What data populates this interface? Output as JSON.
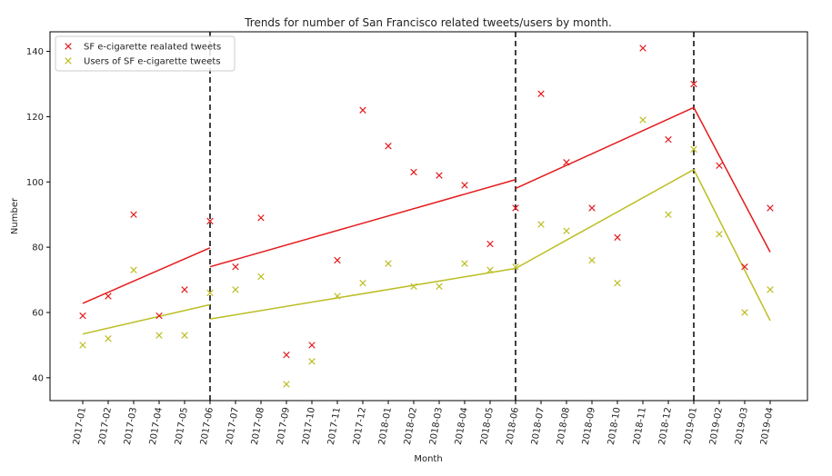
{
  "chart_data": {
    "type": "scatter",
    "title": "Trends for number of San Francisco related tweets/users by month.",
    "xlabel": "Month",
    "ylabel": "Number",
    "ylim": [
      33,
      146
    ],
    "yticks": [
      40,
      60,
      80,
      100,
      120,
      140
    ],
    "categories": [
      "2017-01",
      "2017-02",
      "2017-03",
      "2017-04",
      "2017-05",
      "2017-06",
      "2017-07",
      "2017-08",
      "2017-09",
      "2017-10",
      "2017-11",
      "2017-12",
      "2018-01",
      "2018-02",
      "2018-03",
      "2018-04",
      "2018-05",
      "2018-06",
      "2018-07",
      "2018-08",
      "2018-09",
      "2018-10",
      "2018-11",
      "2018-12",
      "2019-01",
      "2019-02",
      "2019-03",
      "2019-04"
    ],
    "legend_position": "top-left",
    "grid": false,
    "series": [
      {
        "name": "SF e-cigarette realated tweets",
        "color": "#e41a1c",
        "marker": "x",
        "values": [
          59,
          65,
          90,
          59,
          67,
          88,
          74,
          89,
          47,
          50,
          76,
          122,
          111,
          103,
          102,
          99,
          81,
          92,
          127,
          106,
          92,
          83,
          141,
          113,
          130,
          105,
          74,
          92
        ],
        "trend_segments": [
          {
            "from": "2017-01",
            "to": "2017-06",
            "y_start": 62.8,
            "y_end": 79.8
          },
          {
            "from": "2017-06",
            "to": "2018-06",
            "y_start": 74.0,
            "y_end": 100.7
          },
          {
            "from": "2018-06",
            "to": "2019-01",
            "y_start": 98.0,
            "y_end": 122.8
          },
          {
            "from": "2019-01",
            "to": "2019-04",
            "y_start": 122.8,
            "y_end": 78.5
          }
        ]
      },
      {
        "name": "Users of SF e-cigarette tweets",
        "color": "#bcbd22",
        "marker": "x",
        "values": [
          50,
          52,
          73,
          53,
          53,
          66,
          67,
          71,
          38,
          45,
          65,
          69,
          75,
          68,
          68,
          75,
          73,
          74,
          87,
          85,
          76,
          69,
          119,
          90,
          110,
          84,
          60,
          67
        ],
        "trend_segments": [
          {
            "from": "2017-01",
            "to": "2017-06",
            "y_start": 53.4,
            "y_end": 62.4
          },
          {
            "from": "2017-06",
            "to": "2018-06",
            "y_start": 58.0,
            "y_end": 73.5
          },
          {
            "from": "2018-06",
            "to": "2019-01",
            "y_start": 73.5,
            "y_end": 103.8
          },
          {
            "from": "2019-01",
            "to": "2019-04",
            "y_start": 103.8,
            "y_end": 57.5
          }
        ]
      }
    ],
    "vertical_lines": [
      "2017-06",
      "2018-06",
      "2019-01"
    ]
  }
}
